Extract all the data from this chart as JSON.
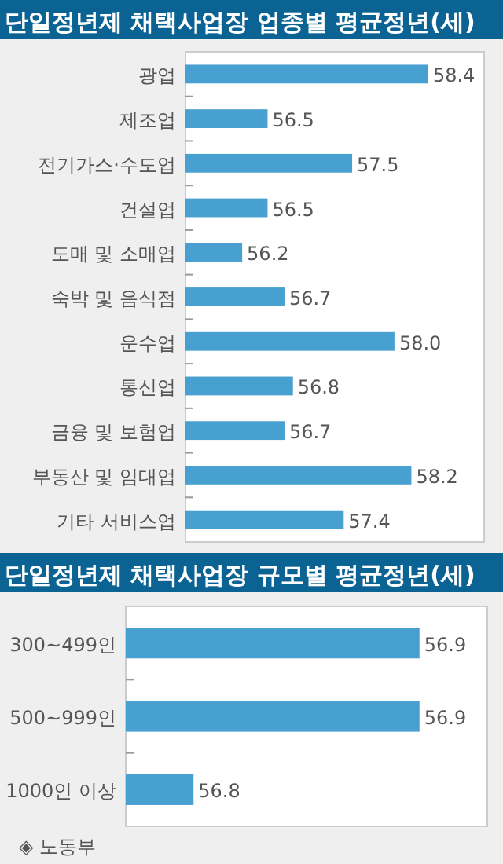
{
  "chart_data": [
    {
      "type": "bar",
      "orientation": "horizontal",
      "title": "단일정년제 채택사업장 업종별 평균정년(세)",
      "categories": [
        "광업",
        "제조업",
        "전기가스·수도업",
        "건설업",
        "도매 및 소매업",
        "숙박 및 음식점",
        "운수업",
        "통신업",
        "금융 및 보험업",
        "부동산 및 임대업",
        "기타 서비스업"
      ],
      "values": [
        58.4,
        56.5,
        57.5,
        56.5,
        56.2,
        56.7,
        58.0,
        56.8,
        56.7,
        58.2,
        57.4
      ],
      "value_labels": [
        "58.4",
        "56.5",
        "57.5",
        "56.5",
        "56.2",
        "56.7",
        "58.0",
        "56.8",
        "56.7",
        "58.2",
        "57.4"
      ],
      "color": "#47a0d0",
      "xlim": [
        55.53,
        59.06
      ],
      "tick_labels": "y"
    },
    {
      "type": "bar",
      "orientation": "horizontal",
      "title": "단일정년제 채택사업장 규모별 평균정년(세)",
      "categories": [
        "300~499인",
        "500~999인",
        "1000인 이상"
      ],
      "values": [
        56.9,
        56.9,
        56.8
      ],
      "value_labels": [
        "56.9",
        "56.9",
        "56.8"
      ],
      "color": "#47a0d0",
      "xlim": [
        56.77,
        56.93
      ],
      "tick_labels": "y",
      "annotations": [
        "◈ 노동부"
      ]
    }
  ]
}
